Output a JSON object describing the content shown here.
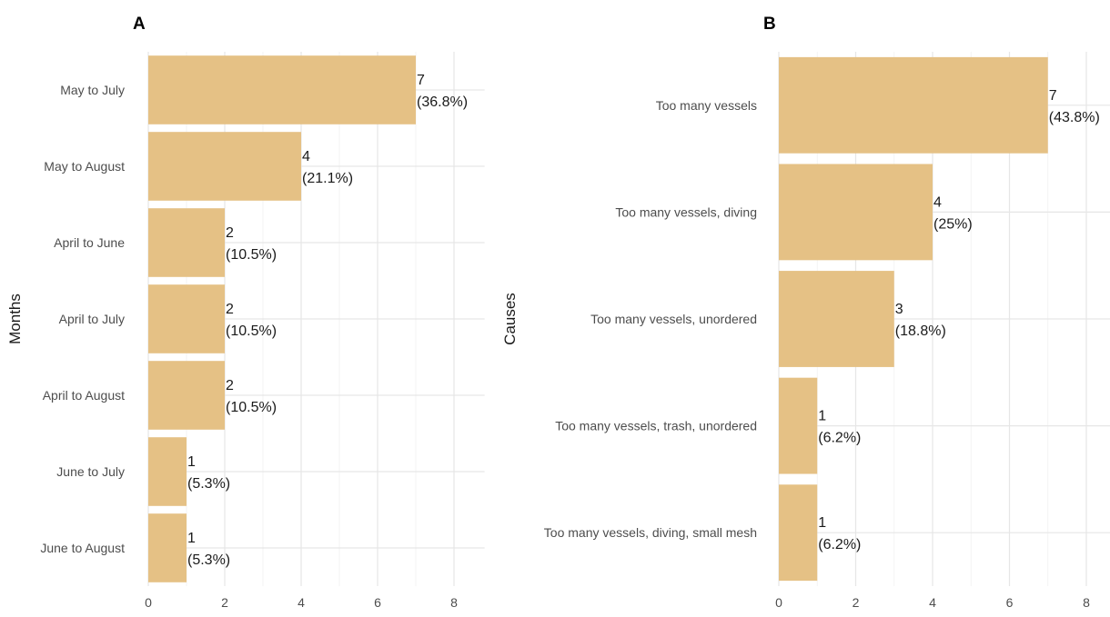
{
  "chart_data": [
    {
      "type": "bar",
      "orientation": "horizontal",
      "panel": "A",
      "ylabel": "Months",
      "xlabel": "",
      "categories": [
        "May to July",
        "May to August",
        "April to June",
        "April to July",
        "April to August",
        "June to July",
        "June to August"
      ],
      "values": [
        7,
        4,
        2,
        2,
        2,
        1,
        1
      ],
      "labels": [
        [
          "7",
          "(36.8%)"
        ],
        [
          "4",
          "(21.1%)"
        ],
        [
          "2",
          "(10.5%)"
        ],
        [
          "2",
          "(10.5%)"
        ],
        [
          "2",
          "(10.5%)"
        ],
        [
          "1",
          "(5.3%)"
        ],
        [
          "1",
          "(5.3%)"
        ]
      ],
      "xlim": [
        0,
        8.8
      ],
      "xticks": [
        0,
        2,
        4,
        6,
        8
      ],
      "grid": true,
      "color": "#e5c185"
    },
    {
      "type": "bar",
      "orientation": "horizontal",
      "panel": "B",
      "ylabel": "Causes",
      "xlabel": "",
      "categories": [
        "Too many vessels",
        "Too many vessels, diving",
        "Too many vessels, unordered",
        "Too many vessels, trash, unordered",
        "Too many vessels, diving, small mesh"
      ],
      "values": [
        7,
        4,
        3,
        1,
        1
      ],
      "labels": [
        [
          "7",
          "(43.8%)"
        ],
        [
          "4",
          "(25%)"
        ],
        [
          "3",
          "(18.8%)"
        ],
        [
          "1",
          "(6.2%)"
        ],
        [
          "1",
          "(6.2%)"
        ]
      ],
      "xlim": [
        0,
        8.8
      ],
      "xticks": [
        0,
        2,
        4,
        6,
        8
      ],
      "grid": true,
      "color": "#e5c185"
    }
  ]
}
